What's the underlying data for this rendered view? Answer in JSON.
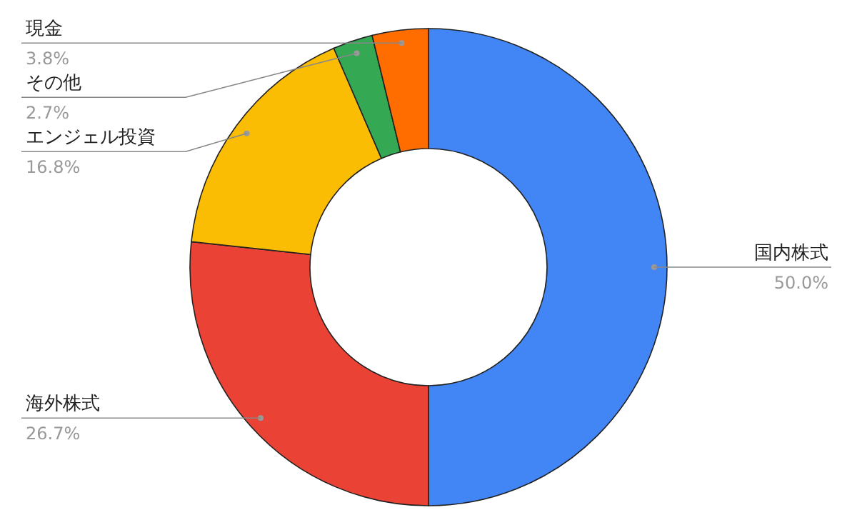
{
  "chart_data": {
    "type": "donut",
    "categories": [
      "国内株式",
      "海外株式",
      "エンジェル投資",
      "その他",
      "現金"
    ],
    "values": [
      50.0,
      26.7,
      16.8,
      2.7,
      3.8
    ],
    "value_labels": [
      "50.0%",
      "26.7%",
      "16.8%",
      "2.7%",
      "3.8%"
    ],
    "colors": [
      "#4285f4",
      "#ea4335",
      "#fbbc04",
      "#34a853",
      "#ff6d01"
    ]
  }
}
